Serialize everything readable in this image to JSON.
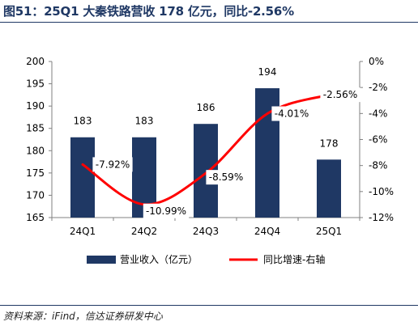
{
  "title": "图51：25Q1 大秦铁路营收 178 亿元，同比-2.56%",
  "source": "资料来源：iFind，信达证券研发中心",
  "colors": {
    "bar": "#1f3864",
    "line": "#ff0000",
    "title": "#1f3864"
  },
  "chart_data": {
    "type": "bar",
    "categories": [
      "24Q1",
      "24Q2",
      "24Q3",
      "24Q4",
      "25Q1"
    ],
    "series": [
      {
        "name": "营业收入（亿元）",
        "type": "bar",
        "axis": "left",
        "values": [
          183,
          183,
          186,
          194,
          178
        ],
        "labels": [
          "183",
          "183",
          "186",
          "194",
          "178"
        ]
      },
      {
        "name": "同比增速-右轴",
        "type": "line",
        "axis": "right",
        "smooth": true,
        "values": [
          -7.92,
          -10.99,
          -8.59,
          -4.01,
          -2.56
        ],
        "labels": [
          "-7.92%",
          "-10.99%",
          "-8.59%",
          "-4.01%",
          "-2.56%"
        ]
      }
    ],
    "ylim": [
      165,
      200
    ],
    "yticks": [
      "165",
      "170",
      "175",
      "180",
      "185",
      "190",
      "195",
      "200"
    ],
    "y2lim": [
      -12,
      0
    ],
    "y2ticks": [
      "-12%",
      "-10%",
      "-8%",
      "-6%",
      "-4%",
      "-2%",
      "0%"
    ],
    "grid": false,
    "legend_position": "bottom"
  }
}
